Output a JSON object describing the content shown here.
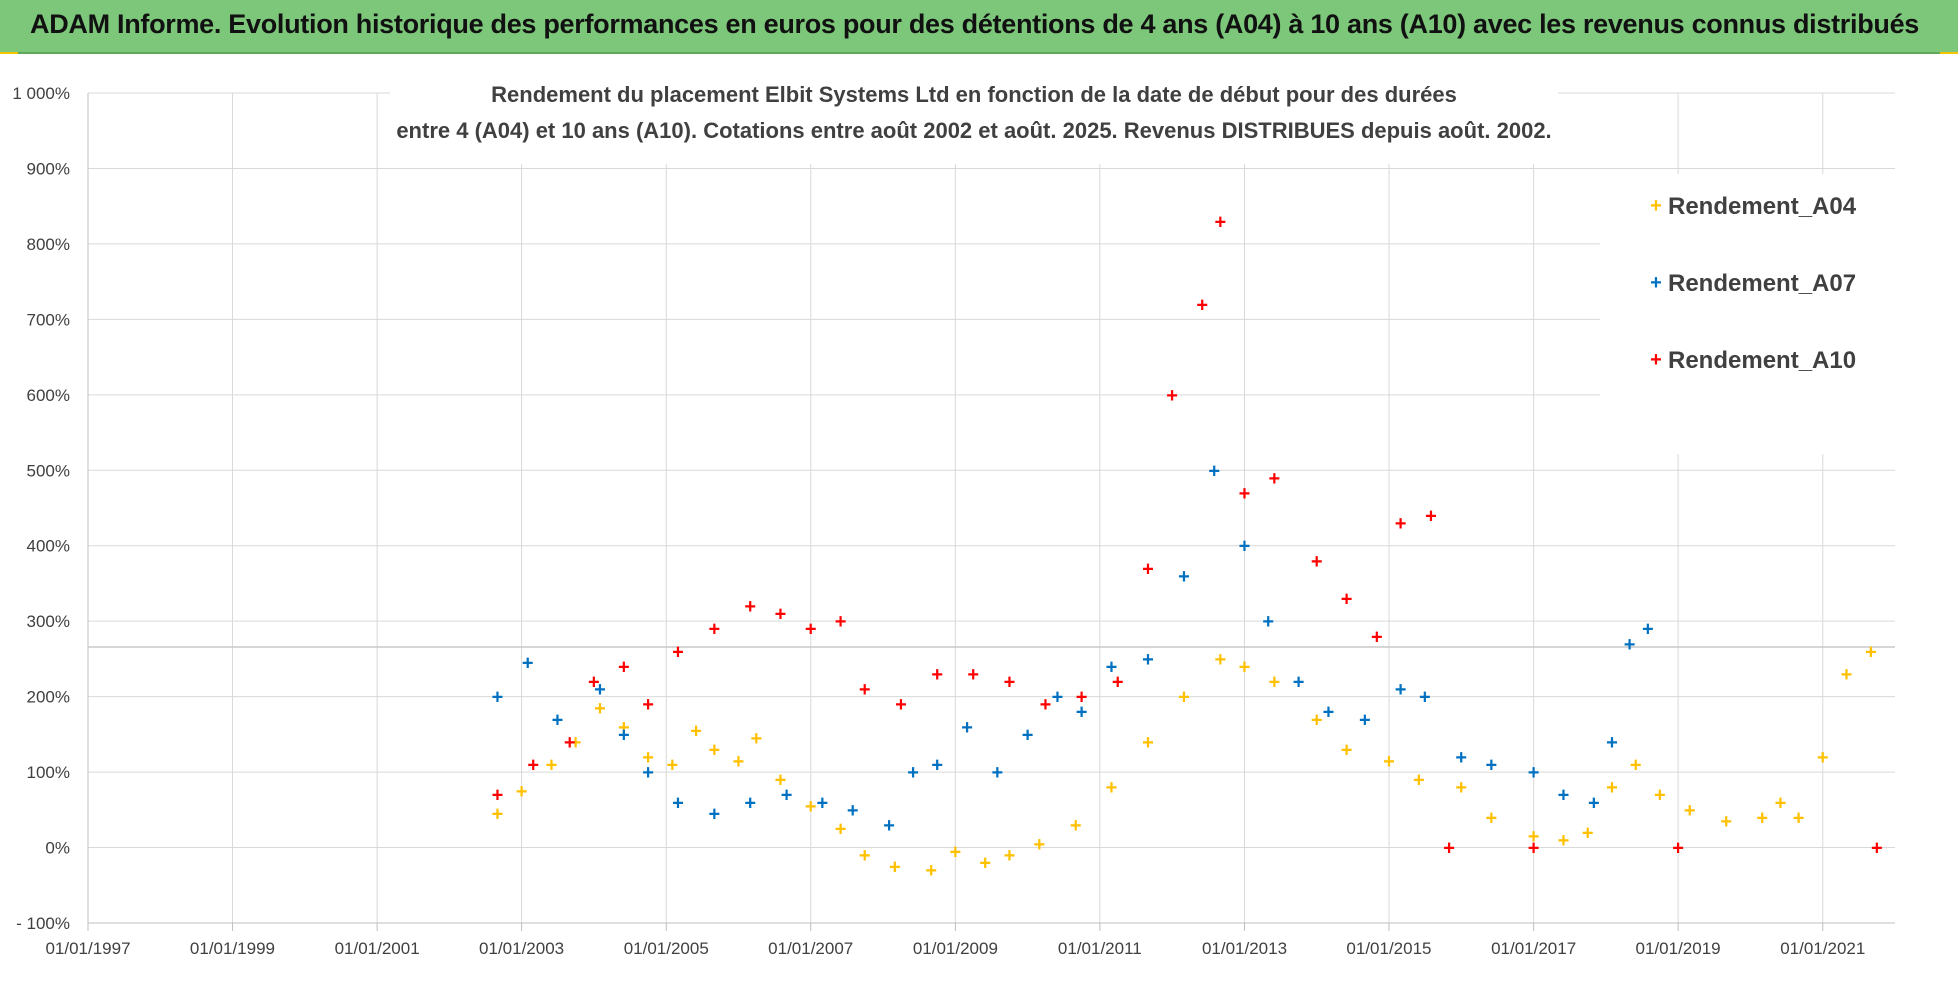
{
  "banner": {
    "title": "ADAM Informe. Evolution historique des performances en euros pour des détentions de 4 ans (A04) à 10 ans (A10) avec les revenus connus distribués"
  },
  "colors": {
    "banner": "#7dc77a",
    "a04": "#ffc000",
    "a07": "#0070c0",
    "a10": "#ff0000",
    "grid": "#d9d9d9"
  },
  "chart_data": {
    "type": "scatter",
    "title_line1": "Rendement du placement Elbit Systems Ltd en fonction de la date de début pour des durées",
    "title_line2": "entre 4 (A04) et 10 ans (A10).  Cotations entre août 2002  et août. 2025.  Revenus DISTRIBUES depuis août. 2002.",
    "x_axis": {
      "type": "date",
      "min": "1997-01-01",
      "max": "2022-01-01",
      "tick_labels": [
        "01/01/1997",
        "01/01/1999",
        "01/01/2001",
        "01/01/2003",
        "01/01/2005",
        "01/01/2007",
        "01/01/2009",
        "01/01/2011",
        "01/01/2013",
        "01/01/2015",
        "01/01/2017",
        "01/01/2019",
        "01/01/2021"
      ]
    },
    "y_axis": {
      "min": -100,
      "max": 1000,
      "unit": "%",
      "tick_labels": [
        "- 100%",
        "0%",
        "100%",
        "200%",
        "300%",
        "400%",
        "500%",
        "600%",
        "700%",
        "800%",
        "900%",
        "1 000%"
      ]
    },
    "grid": true,
    "legend_position": "top-right",
    "series": [
      {
        "name": "Rendement_A04",
        "marker": "+",
        "color": "#ffc000",
        "points": [
          [
            "2002-09-01",
            45
          ],
          [
            "2003-01-01",
            75
          ],
          [
            "2003-06-01",
            110
          ],
          [
            "2003-10-01",
            140
          ],
          [
            "2004-02-01",
            185
          ],
          [
            "2004-06-01",
            160
          ],
          [
            "2004-10-01",
            120
          ],
          [
            "2005-02-01",
            110
          ],
          [
            "2005-06-01",
            155
          ],
          [
            "2005-09-01",
            130
          ],
          [
            "2006-01-01",
            115
          ],
          [
            "2006-04-01",
            145
          ],
          [
            "2006-08-01",
            90
          ],
          [
            "2007-01-01",
            55
          ],
          [
            "2007-06-01",
            25
          ],
          [
            "2007-10-01",
            -10
          ],
          [
            "2008-03-01",
            -25
          ],
          [
            "2008-09-01",
            -30
          ],
          [
            "2009-01-01",
            -5
          ],
          [
            "2009-06-01",
            -20
          ],
          [
            "2009-10-01",
            -10
          ],
          [
            "2010-03-01",
            5
          ],
          [
            "2010-09-01",
            30
          ],
          [
            "2011-03-01",
            80
          ],
          [
            "2011-09-01",
            140
          ],
          [
            "2012-03-01",
            200
          ],
          [
            "2012-09-01",
            250
          ],
          [
            "2013-01-01",
            240
          ],
          [
            "2013-06-01",
            220
          ],
          [
            "2014-01-01",
            170
          ],
          [
            "2014-06-01",
            130
          ],
          [
            "2015-01-01",
            115
          ],
          [
            "2015-06-01",
            90
          ],
          [
            "2016-01-01",
            80
          ],
          [
            "2016-06-01",
            40
          ],
          [
            "2017-01-01",
            15
          ],
          [
            "2017-06-01",
            10
          ],
          [
            "2017-10-01",
            20
          ],
          [
            "2018-02-01",
            80
          ],
          [
            "2018-06-01",
            110
          ],
          [
            "2018-10-01",
            70
          ],
          [
            "2019-03-01",
            50
          ],
          [
            "2019-09-01",
            35
          ],
          [
            "2020-03-01",
            40
          ],
          [
            "2020-06-01",
            60
          ],
          [
            "2020-09-01",
            40
          ],
          [
            "2021-01-01",
            120
          ],
          [
            "2021-05-01",
            230
          ],
          [
            "2021-09-01",
            260
          ]
        ]
      },
      {
        "name": "Rendement_A07",
        "marker": "+",
        "color": "#0070c0",
        "points": [
          [
            "2002-09-01",
            200
          ],
          [
            "2003-02-01",
            245
          ],
          [
            "2003-07-01",
            170
          ],
          [
            "2004-02-01",
            210
          ],
          [
            "2004-06-01",
            150
          ],
          [
            "2004-10-01",
            100
          ],
          [
            "2005-03-01",
            60
          ],
          [
            "2005-09-01",
            45
          ],
          [
            "2006-03-01",
            60
          ],
          [
            "2006-09-01",
            70
          ],
          [
            "2007-03-01",
            60
          ],
          [
            "2007-08-01",
            50
          ],
          [
            "2008-02-01",
            30
          ],
          [
            "2008-06-01",
            100
          ],
          [
            "2008-10-01",
            110
          ],
          [
            "2009-03-01",
            160
          ],
          [
            "2009-08-01",
            100
          ],
          [
            "2010-01-01",
            150
          ],
          [
            "2010-06-01",
            200
          ],
          [
            "2010-10-01",
            180
          ],
          [
            "2011-03-01",
            240
          ],
          [
            "2011-09-01",
            250
          ],
          [
            "2012-03-01",
            360
          ],
          [
            "2012-08-01",
            500
          ],
          [
            "2013-01-01",
            400
          ],
          [
            "2013-05-01",
            300
          ],
          [
            "2013-10-01",
            220
          ],
          [
            "2014-03-01",
            180
          ],
          [
            "2014-09-01",
            170
          ],
          [
            "2015-03-01",
            210
          ],
          [
            "2015-07-01",
            200
          ],
          [
            "2016-01-01",
            120
          ],
          [
            "2016-06-01",
            110
          ],
          [
            "2017-01-01",
            100
          ],
          [
            "2017-06-01",
            70
          ],
          [
            "2017-11-01",
            60
          ],
          [
            "2018-02-01",
            140
          ],
          [
            "2018-05-01",
            270
          ],
          [
            "2018-08-01",
            290
          ]
        ]
      },
      {
        "name": "Rendement_A10",
        "marker": "+",
        "color": "#ff0000",
        "points": [
          [
            "2002-09-01",
            70
          ],
          [
            "2003-03-01",
            110
          ],
          [
            "2003-09-01",
            140
          ],
          [
            "2004-01-01",
            220
          ],
          [
            "2004-06-01",
            240
          ],
          [
            "2004-10-01",
            190
          ],
          [
            "2005-03-01",
            260
          ],
          [
            "2005-09-01",
            290
          ],
          [
            "2006-03-01",
            320
          ],
          [
            "2006-08-01",
            310
          ],
          [
            "2007-01-01",
            290
          ],
          [
            "2007-06-01",
            300
          ],
          [
            "2007-10-01",
            210
          ],
          [
            "2008-04-01",
            190
          ],
          [
            "2008-10-01",
            230
          ],
          [
            "2009-04-01",
            230
          ],
          [
            "2009-10-01",
            220
          ],
          [
            "2010-04-01",
            190
          ],
          [
            "2010-10-01",
            200
          ],
          [
            "2011-04-01",
            220
          ],
          [
            "2011-09-01",
            370
          ],
          [
            "2012-01-01",
            600
          ],
          [
            "2012-06-01",
            720
          ],
          [
            "2012-09-01",
            830
          ],
          [
            "2013-01-01",
            470
          ],
          [
            "2013-06-01",
            490
          ],
          [
            "2014-01-01",
            380
          ],
          [
            "2014-06-01",
            330
          ],
          [
            "2014-11-01",
            280
          ],
          [
            "2015-03-01",
            430
          ],
          [
            "2015-08-01",
            440
          ],
          [
            "2015-11-01",
            0
          ],
          [
            "2017-01-01",
            0
          ],
          [
            "2019-01-01",
            0
          ],
          [
            "2021-10-01",
            0
          ]
        ]
      }
    ]
  }
}
